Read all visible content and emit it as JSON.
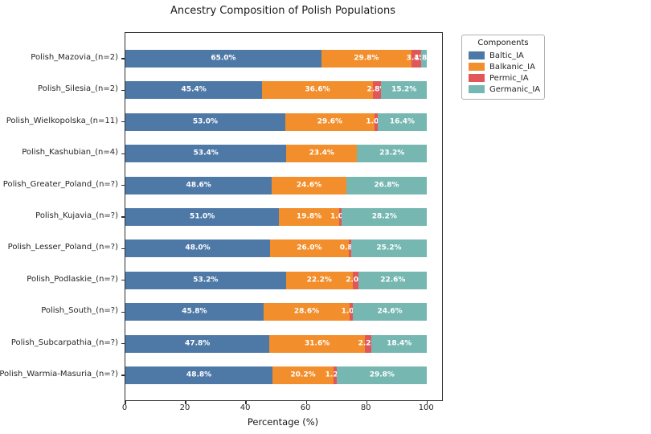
{
  "chart_data": {
    "type": "bar",
    "orientation": "horizontal",
    "stacked": true,
    "title": "Ancestry Composition of Polish Populations",
    "xlabel": "Percentage (%)",
    "xlim": [
      0,
      105
    ],
    "xticks": [
      0,
      20,
      40,
      60,
      80,
      100
    ],
    "grid": false,
    "bar_label_format": "{value}%",
    "bar_label_color": "#ffffff",
    "axis_color": "#2e2e2e",
    "categories": [
      "Polish_Mazovia_(n=2)",
      "Polish_Silesia_(n=2)",
      "Polish_Wielkopolska_(n=11)",
      "Polish_Kashubian_(n=4)",
      "Polish_Greater_Poland_(n=?)",
      "Polish_Kujavia_(n=?)",
      "Polish_Lesser_Poland_(n=?)",
      "Polish_Podlaskie_(n=?)",
      "Polish_South_(n=?)",
      "Polish_Subcarpathia_(n=?)",
      "Polish_Warmia-Masuria_(n=?)"
    ],
    "series": [
      {
        "name": "Baltic_IA",
        "color": "#4E79A7",
        "values": [
          65.0,
          45.4,
          53.0,
          53.4,
          48.6,
          51.0,
          48.0,
          53.2,
          45.8,
          47.8,
          48.8
        ]
      },
      {
        "name": "Balkanic_IA",
        "color": "#F28E2B",
        "values": [
          29.8,
          36.6,
          29.6,
          23.4,
          24.6,
          19.8,
          26.0,
          22.2,
          28.6,
          31.6,
          20.2
        ]
      },
      {
        "name": "Permic_IA",
        "color": "#E15759",
        "values": [
          3.4,
          2.8,
          1.0,
          0.0,
          0.0,
          1.0,
          0.8,
          2.0,
          1.0,
          2.2,
          1.2
        ]
      },
      {
        "name": "Germanic_IA",
        "color": "#76B7B2",
        "values": [
          1.8,
          15.2,
          16.4,
          23.2,
          26.8,
          28.2,
          25.2,
          22.6,
          24.6,
          18.4,
          29.8
        ]
      }
    ],
    "legend": {
      "title": "Components",
      "position": "outside-upper-right"
    }
  }
}
